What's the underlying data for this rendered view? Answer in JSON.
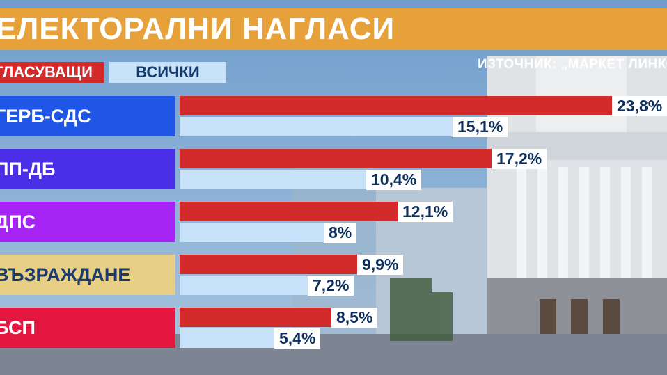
{
  "header": {
    "title": "ЕЛЕКТОРАЛНИ НАГЛАСИ"
  },
  "source": "ИЗТОЧНИК: „МАРКЕТ ЛИНКС“",
  "legend": {
    "voters": "ГЛАСУВАЩИ",
    "all": "ВСИЧКИ"
  },
  "colors": {
    "voters": "#d32b2b",
    "all": "#c6e1f8",
    "title_bar": "#e7a13a"
  },
  "chart_data": {
    "type": "bar",
    "orientation": "horizontal",
    "title": "ЕЛЕКТОРАЛНИ НАГЛАСИ",
    "categories": [
      "ГЕРБ-СДС",
      "ПП-ДБ",
      "ДПС",
      "ВЪЗРАЖДАНЕ",
      "БСП"
    ],
    "category_colors": [
      "#1f56e6",
      "#4b2fe6",
      "#a524f5",
      "#e8cf86",
      "#e3173f"
    ],
    "category_text_colors": [
      "#ffffff",
      "#ffffff",
      "#ffffff",
      "#1b3c6d",
      "#ffffff"
    ],
    "series": [
      {
        "name": "ГЛАСУВАЩИ",
        "values": [
          23.8,
          17.2,
          12.1,
          9.9,
          8.5
        ],
        "labels": [
          "23,8%",
          "17,2%",
          "12,1%",
          "9,9%",
          "8,5%"
        ]
      },
      {
        "name": "ВСИЧКИ",
        "values": [
          15.1,
          10.4,
          8,
          7.2,
          5.4
        ],
        "labels": [
          "15,1%",
          "10,4%",
          "8%",
          "7,2%",
          "5,4%"
        ]
      }
    ],
    "xlim": [
      0,
      24
    ],
    "grid": false,
    "legend_position": "top-left"
  }
}
